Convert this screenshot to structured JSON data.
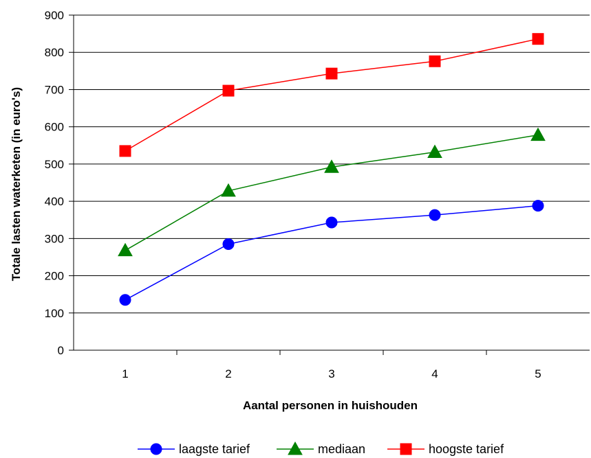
{
  "chart_data": {
    "type": "line",
    "title": "",
    "xlabel": "Aantal personen in huishouden",
    "ylabel": "Totale lasten waterketen (in euro's)",
    "categories": [
      "1",
      "2",
      "3",
      "4",
      "5"
    ],
    "ylim": [
      0,
      900
    ],
    "yticks": [
      "0",
      "100",
      "200",
      "300",
      "400",
      "500",
      "600",
      "700",
      "800",
      "900"
    ],
    "grid": "horizontal",
    "legend_position": "bottom",
    "series": [
      {
        "name": "laagste tarief",
        "values": [
          135,
          285,
          343,
          363,
          388
        ],
        "color": "#0000ff",
        "marker": "circle"
      },
      {
        "name": "mediaan",
        "values": [
          268,
          428,
          492,
          532,
          578
        ],
        "color": "#008000",
        "marker": "triangle"
      },
      {
        "name": "hoogste tarief",
        "values": [
          535,
          697,
          743,
          776,
          836
        ],
        "color": "#ff0000",
        "marker": "square"
      }
    ]
  }
}
